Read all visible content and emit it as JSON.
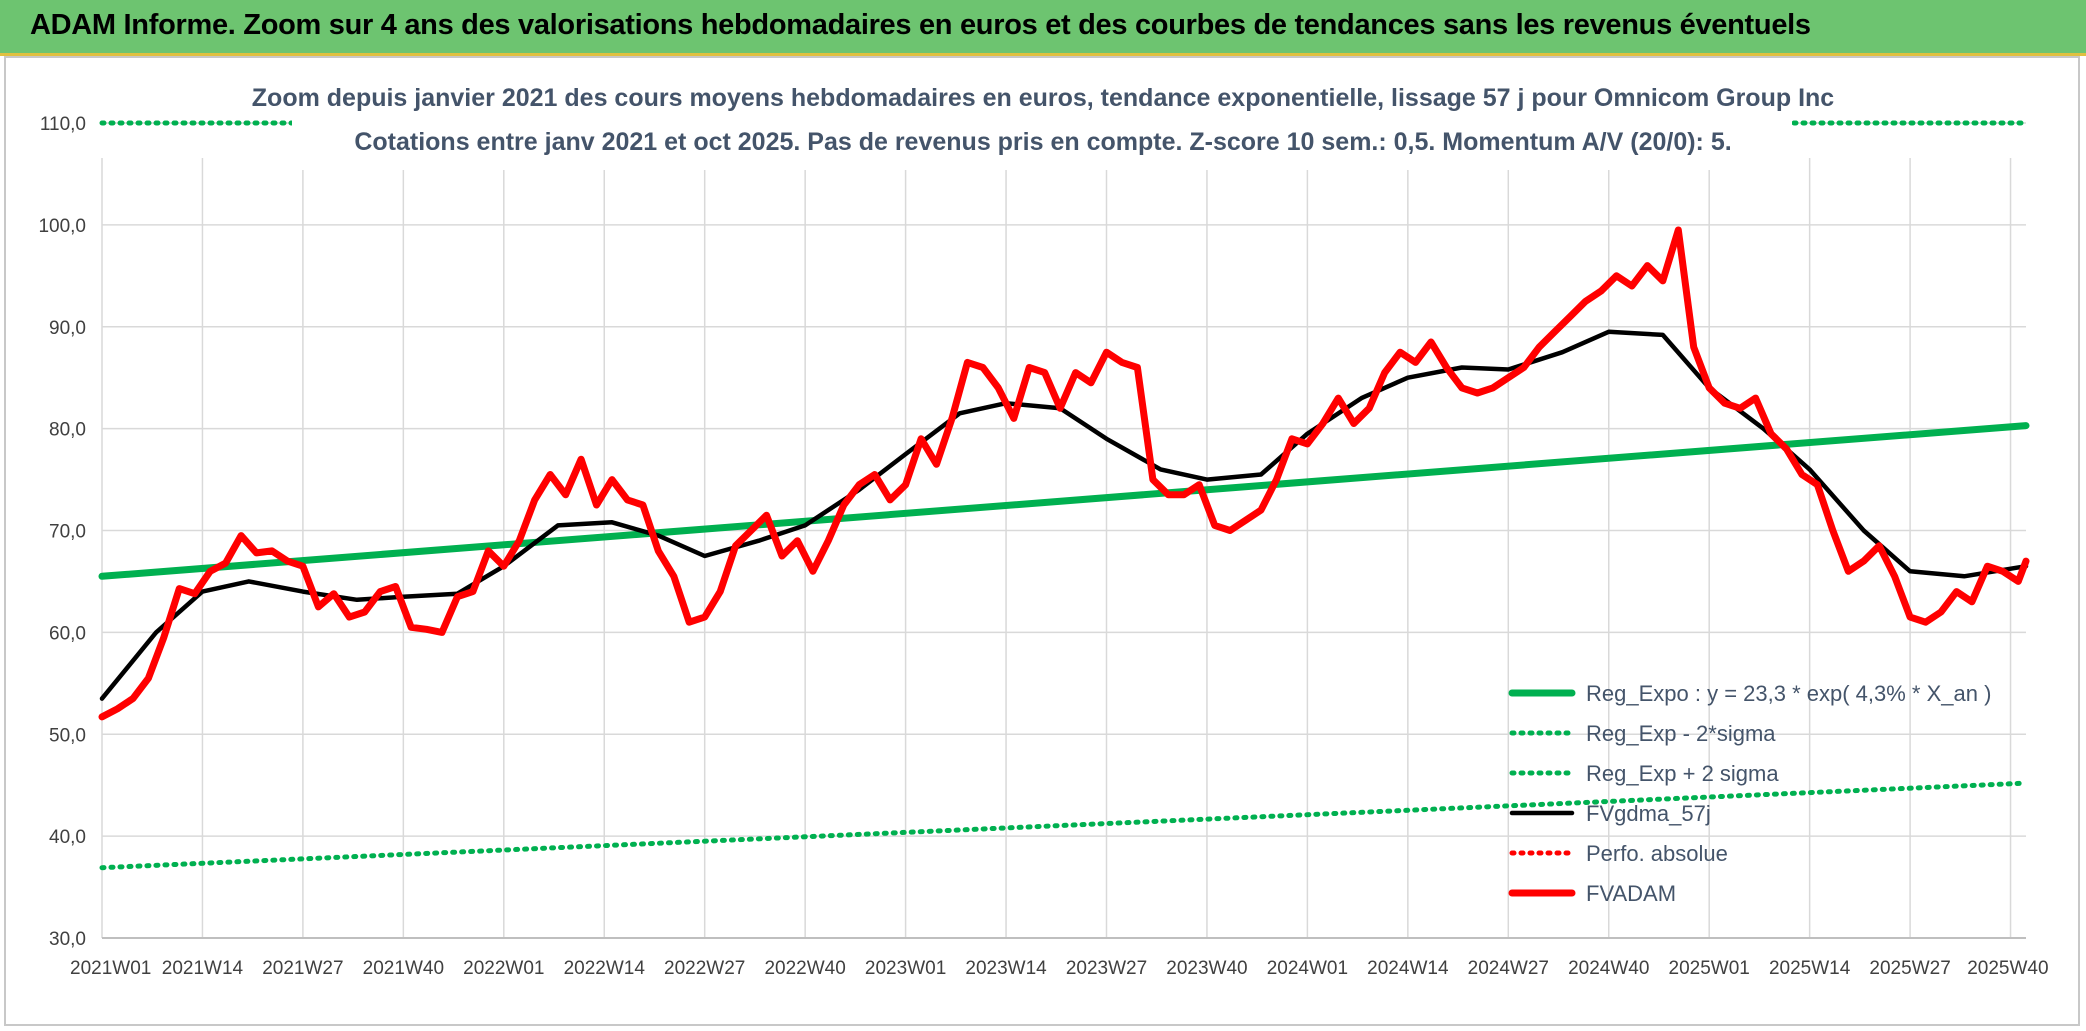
{
  "header": {
    "title": "ADAM Informe. Zoom sur 4 ans des valorisations hebdomadaires en euros et des courbes de tendances sans les revenus éventuels"
  },
  "chart_data": {
    "type": "line",
    "title_line1": "Zoom depuis janvier 2021 des cours moyens hebdomadaires en euros, tendance exponentielle, lissage 57 j pour Omnicom Group Inc",
    "title_line2": "Cotations entre janv 2021 et oct 2025. Pas de revenus pris en compte. Z-score 10 sem.: 0,5. Momentum A/V (20/0): 5.",
    "xlabel": "",
    "ylabel": "",
    "ylim": [
      30,
      110
    ],
    "y_ticks": [
      "30,0",
      "40,0",
      "50,0",
      "60,0",
      "70,0",
      "80,0",
      "90,0",
      "100,0",
      "110,0"
    ],
    "x_ticks": [
      "2021W01",
      "2021W14",
      "2021W27",
      "2021W40",
      "2022W01",
      "2022W14",
      "2022W27",
      "2022W40",
      "2023W01",
      "2023W14",
      "2023W27",
      "2023W40",
      "2024W01",
      "2024W14",
      "2024W27",
      "2024W40",
      "2025W01",
      "2025W14",
      "2025W27",
      "2025W40"
    ],
    "n_weeks": 250,
    "grid": true,
    "legend_position": "bottom-right",
    "colors": {
      "reg_expo": "#00b050",
      "reg_sigma": "#00b050",
      "fvgdma": "#000000",
      "perfo": "#ff0000",
      "fvadam": "#ff0000",
      "grid": "#d9d9d9",
      "title": "#44546a"
    },
    "series": [
      {
        "name": "Reg_Expo : y = 23,3 * exp( 4,3% *  X_an )",
        "key": "reg_expo",
        "style": "solid-thick",
        "x_index": [
          0,
          249
        ],
        "values": [
          65.5,
          80.3
        ]
      },
      {
        "name": "Reg_Exp - 2*sigma",
        "key": "reg_minus",
        "style": "dotted",
        "x_index": [
          0,
          249
        ],
        "values": [
          36.9,
          45.2
        ]
      },
      {
        "name": "Reg_Exp + 2 sigma",
        "key": "reg_plus",
        "style": "dotted",
        "x_index": [
          0,
          249
        ],
        "values": [
          110.0,
          110.0
        ]
      },
      {
        "name": "FVgdma_57j",
        "key": "fvgdma",
        "style": "solid",
        "x_index": [
          0,
          7,
          13,
          19,
          26,
          33,
          39,
          46,
          52,
          59,
          66,
          72,
          78,
          85,
          91,
          98,
          104,
          111,
          117,
          124,
          130,
          137,
          143,
          150,
          156,
          163,
          169,
          176,
          182,
          189,
          195,
          202,
          208,
          215,
          221,
          228,
          234,
          241,
          249
        ],
        "values": [
          53.5,
          60.0,
          64.0,
          65.0,
          64.0,
          63.2,
          63.5,
          63.8,
          66.5,
          70.5,
          70.8,
          69.5,
          67.5,
          69.0,
          70.5,
          74.0,
          77.5,
          81.5,
          82.5,
          82.0,
          79.0,
          76.0,
          75.0,
          75.5,
          79.5,
          83.0,
          85.0,
          86.0,
          85.8,
          87.5,
          89.5,
          89.2,
          84.0,
          80.0,
          76.0,
          70.0,
          66.0,
          65.5,
          66.5
        ]
      },
      {
        "name": "Perfo. absolue",
        "key": "perfo",
        "style": "dotted",
        "x_index": [],
        "values": []
      },
      {
        "name": "FVADAM",
        "key": "fvadam",
        "style": "solid-thick",
        "x_index": [
          0,
          2,
          4,
          6,
          8,
          10,
          12,
          14,
          16,
          18,
          20,
          22,
          24,
          26,
          28,
          30,
          32,
          34,
          36,
          38,
          40,
          42,
          44,
          46,
          48,
          50,
          52,
          54,
          56,
          58,
          60,
          62,
          64,
          66,
          68,
          70,
          72,
          74,
          76,
          78,
          80,
          82,
          84,
          86,
          88,
          90,
          92,
          94,
          96,
          98,
          100,
          102,
          104,
          106,
          108,
          110,
          112,
          114,
          116,
          118,
          120,
          122,
          124,
          126,
          128,
          130,
          132,
          134,
          136,
          138,
          140,
          142,
          144,
          146,
          148,
          150,
          152,
          154,
          156,
          158,
          160,
          162,
          164,
          166,
          168,
          170,
          172,
          174,
          176,
          178,
          180,
          182,
          184,
          186,
          188,
          190,
          192,
          194,
          196,
          198,
          200,
          202,
          204,
          206,
          208,
          210,
          212,
          214,
          216,
          218,
          220,
          222,
          224,
          226,
          228,
          230,
          232,
          234,
          236,
          238,
          240,
          242,
          244,
          246,
          248,
          249
        ],
        "values": [
          51.7,
          52.5,
          53.5,
          55.5,
          59.5,
          64.3,
          63.8,
          66.0,
          66.8,
          69.5,
          67.8,
          68.0,
          67.0,
          66.5,
          62.5,
          63.8,
          61.5,
          62.0,
          64.0,
          64.5,
          60.5,
          60.3,
          60.0,
          63.5,
          64.0,
          68.0,
          66.5,
          69.0,
          73.0,
          75.5,
          73.5,
          77.0,
          72.5,
          75.0,
          73.0,
          72.5,
          68.0,
          65.5,
          61.0,
          61.5,
          64.0,
          68.5,
          70.0,
          71.5,
          67.5,
          69.0,
          66.0,
          69.0,
          72.5,
          74.5,
          75.5,
          73.0,
          74.5,
          79.0,
          76.5,
          81.0,
          86.5,
          86.0,
          84.0,
          81.0,
          86.0,
          85.5,
          82.0,
          85.5,
          84.5,
          87.5,
          86.5,
          86.0,
          75.0,
          73.5,
          73.5,
          74.5,
          70.5,
          70.0,
          71.0,
          72.0,
          75.0,
          79.0,
          78.5,
          80.5,
          83.0,
          80.5,
          82.0,
          85.5,
          87.5,
          86.5,
          88.5,
          86.0,
          84.0,
          83.5,
          84.0,
          85.0,
          86.0,
          88.0,
          89.5,
          91.0,
          92.5,
          93.5,
          95.0,
          94.0,
          96.0,
          94.5,
          99.5,
          88.0,
          84.0,
          82.5,
          82.0,
          83.0,
          79.5,
          78.0,
          75.5,
          74.5,
          70.0,
          66.0,
          67.0,
          68.5,
          65.5,
          61.5,
          61.0,
          62.0,
          64.0,
          63.0,
          66.5,
          66.0,
          65.0,
          67.0
        ]
      }
    ]
  }
}
